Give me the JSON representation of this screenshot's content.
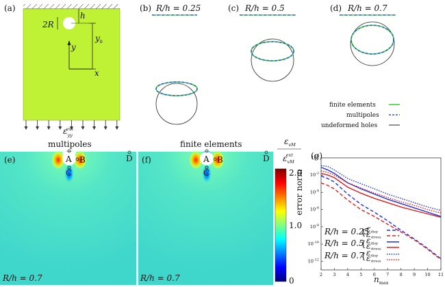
{
  "panels": {
    "a": {
      "label": "(a)",
      "dim_2R": "2R",
      "dim_h": "h",
      "axis_y": "y",
      "axis_x": "x",
      "dim_yb": "y",
      "dim_yb_sub": "b",
      "load": "ε",
      "load_sub": "yy",
      "load_sup": "ext"
    },
    "b": {
      "label": "(b)",
      "title": "R/h = 0.25"
    },
    "c": {
      "label": "(c)",
      "title": "R/h = 0.5"
    },
    "d": {
      "label": "(d)",
      "title": "R/h = 0.7"
    },
    "e": {
      "label": "(e)",
      "title": "multipoles",
      "ratio": "R/h = 0.7",
      "point_a": "A",
      "point_b": "B",
      "point_c": "C",
      "point_d": "D"
    },
    "f": {
      "label": "(f)",
      "title": "finite elements",
      "ratio": "R/h = 0.7",
      "point_a": "A",
      "point_b": "B",
      "point_c": "C",
      "point_d": "D"
    },
    "g": {
      "label": "(g)"
    }
  },
  "legend_top": {
    "fe": "finite elements",
    "mp": "multipoles",
    "uh": "undeformed holes",
    "colors": {
      "fe": "#33cc33",
      "mp": "#3355dd",
      "uh": "#222222"
    }
  },
  "colorbar": {
    "title_num": "ε",
    "title_num_sub": "vM",
    "title_den": "ε",
    "title_den_sub": "vM",
    "title_den_sup": "ext",
    "ticks": [
      "2.0",
      "1.0",
      "0"
    ]
  },
  "chart_data": {
    "type": "line",
    "xlabel": "n",
    "xlabel_sub": "max",
    "ylabel": "error norm",
    "xlim": [
      2,
      11
    ],
    "ylim_log10": [
      -13,
      0
    ],
    "log_y": true,
    "x_ticks": [
      "2",
      "3",
      "4",
      "5",
      "6",
      "7",
      "8",
      "9",
      "10",
      "11"
    ],
    "y_ticks": [
      {
        "base": "10",
        "exp": "0",
        "log": 0
      },
      {
        "base": "10",
        "exp": "-2",
        "log": -2
      },
      {
        "base": "10",
        "exp": "-4",
        "log": -4
      },
      {
        "base": "10",
        "exp": "-6",
        "log": -6
      },
      {
        "base": "10",
        "exp": "-8",
        "log": -8
      },
      {
        "base": "10",
        "exp": "-10",
        "log": -10
      },
      {
        "base": "10",
        "exp": "-12",
        "log": -12
      }
    ],
    "x": [
      2,
      2.5,
      3,
      4,
      5,
      6,
      7,
      8,
      9,
      10,
      11
    ],
    "series": [
      {
        "group": "R/h = 0.25",
        "kind": "disp",
        "color": "#1a2fdd",
        "dash": "dashed",
        "log_values": [
          -2.1,
          -2.4,
          -2.8,
          -4.2,
          -5.4,
          -6.3,
          -7.3,
          -8.4,
          -9.4,
          -10.5,
          -11.7
        ]
      },
      {
        "group": "R/h = 0.25",
        "kind": "stress",
        "color": "#dd1a1a",
        "dash": "dashed",
        "log_values": [
          -2.9,
          -3.2,
          -3.6,
          -4.9,
          -6.0,
          -6.8,
          -7.7,
          -8.6,
          -9.5,
          -10.6,
          -11.8
        ]
      },
      {
        "group": "R/h = 0.5",
        "kind": "disp",
        "color": "#1a2fdd",
        "dash": "solid",
        "log_values": [
          -1.1,
          -1.4,
          -1.8,
          -2.9,
          -3.6,
          -4.2,
          -4.8,
          -5.3,
          -5.8,
          -6.3,
          -6.8
        ]
      },
      {
        "group": "R/h = 0.5",
        "kind": "stress",
        "color": "#dd1a1a",
        "dash": "solid",
        "log_values": [
          -1.8,
          -2.0,
          -2.3,
          -3.4,
          -4.1,
          -4.7,
          -5.2,
          -5.7,
          -6.1,
          -6.5,
          -6.9
        ]
      },
      {
        "group": "R/h = 0.7",
        "kind": "disp",
        "color": "#1a2fdd",
        "dash": "dotted",
        "log_values": [
          -0.9,
          -1.0,
          -1.4,
          -2.4,
          -3.0,
          -3.6,
          -4.2,
          -4.7,
          -5.2,
          -5.7,
          -6.1
        ]
      },
      {
        "group": "R/h = 0.7",
        "kind": "stress",
        "color": "#dd1a1a",
        "dash": "dotted",
        "log_values": [
          -1.5,
          -1.7,
          -2.0,
          -2.9,
          -3.5,
          -4.1,
          -4.6,
          -5.1,
          -5.5,
          -6.0,
          -6.4
        ]
      }
    ],
    "legend": [
      {
        "label": "R/h = 0.25",
        "disp": "ε",
        "disp_sub": "disp",
        "stress": "ε",
        "stress_sub": "stress"
      },
      {
        "label": "R/h = 0.5",
        "disp": "ε",
        "disp_sub": "disp",
        "stress": "ε",
        "stress_sub": "stress"
      },
      {
        "label": "R/h = 0.7",
        "disp": "ε",
        "disp_sub": "disp",
        "stress": "ε",
        "stress_sub": "stress"
      }
    ]
  }
}
